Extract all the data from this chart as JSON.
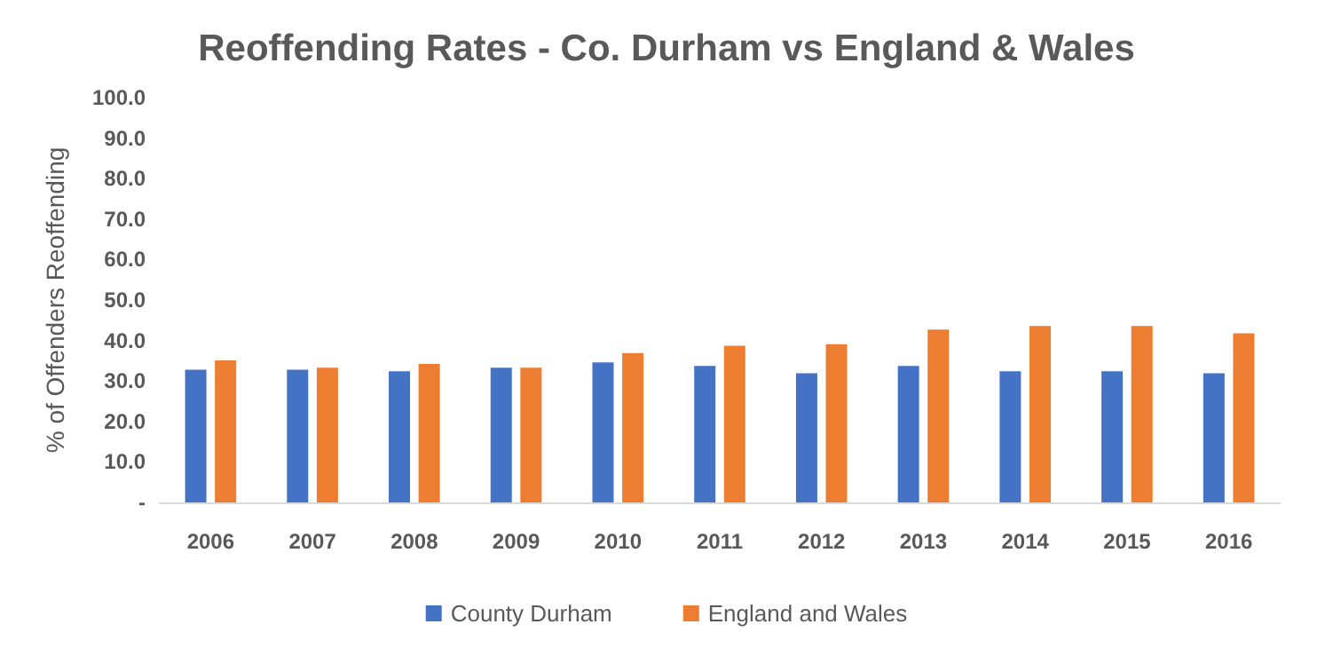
{
  "chart_data": {
    "type": "bar",
    "title": "Reoffending Rates - Co. Durham vs England & Wales",
    "ylabel": "% of Offenders Reoffending",
    "categories": [
      "2006",
      "2007",
      "2008",
      "2009",
      "2010",
      "2011",
      "2012",
      "2013",
      "2014",
      "2015",
      "2016"
    ],
    "series": [
      {
        "name": "County Durham",
        "color": "#4472c4",
        "values": [
          32.8,
          32.8,
          32.4,
          33.3,
          34.6,
          33.7,
          31.9,
          33.7,
          32.4,
          32.4,
          31.9
        ]
      },
      {
        "name": "England and Wales",
        "color": "#ed7d31",
        "values": [
          35.1,
          33.3,
          34.2,
          33.3,
          36.9,
          38.7,
          39.1,
          42.7,
          43.6,
          43.6,
          41.8
        ]
      }
    ],
    "ylim": [
      0,
      100
    ],
    "yticks": [
      {
        "value": 0,
        "label": "-"
      },
      {
        "value": 10,
        "label": "10.0"
      },
      {
        "value": 20,
        "label": "20.0"
      },
      {
        "value": 30,
        "label": "30.0"
      },
      {
        "value": 40,
        "label": "40.0"
      },
      {
        "value": 50,
        "label": "50.0"
      },
      {
        "value": 60,
        "label": "60.0"
      },
      {
        "value": 70,
        "label": "70.0"
      },
      {
        "value": 80,
        "label": "80.0"
      },
      {
        "value": 90,
        "label": "90.0"
      },
      {
        "value": 100,
        "label": "100.0"
      }
    ],
    "legend": "bottom"
  }
}
